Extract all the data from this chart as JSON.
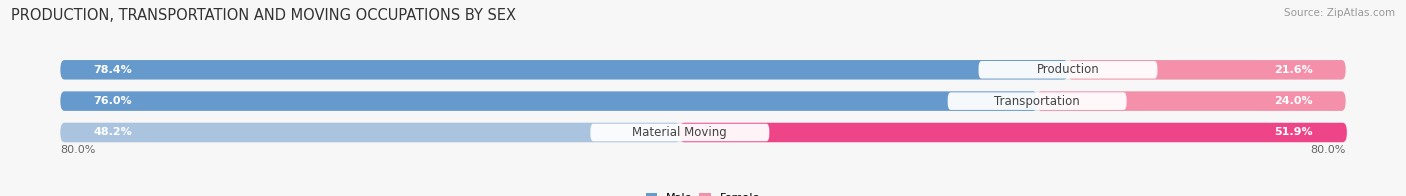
{
  "title": "PRODUCTION, TRANSPORTATION AND MOVING OCCUPATIONS BY SEX",
  "source": "Source: ZipAtlas.com",
  "categories": [
    "Production",
    "Transportation",
    "Material Moving"
  ],
  "male_values": [
    78.4,
    76.0,
    48.2
  ],
  "female_values": [
    21.6,
    24.0,
    51.9
  ],
  "male_color_1": "#6699cc",
  "male_color_2": "#6699cc",
  "male_color_3": "#aac4e0",
  "female_color_1": "#f490aa",
  "female_color_2": "#f490aa",
  "female_color_3": "#ee4488",
  "axis_min": 0.0,
  "axis_max": 100.0,
  "axis_label_left": "80.0%",
  "axis_label_right": "80.0%",
  "bar_height": 0.62,
  "background_color": "#f7f7f7",
  "bar_bg_color": "#e0e0e0",
  "title_fontsize": 10.5,
  "source_fontsize": 7.5,
  "value_fontsize": 8,
  "category_fontsize": 8.5
}
